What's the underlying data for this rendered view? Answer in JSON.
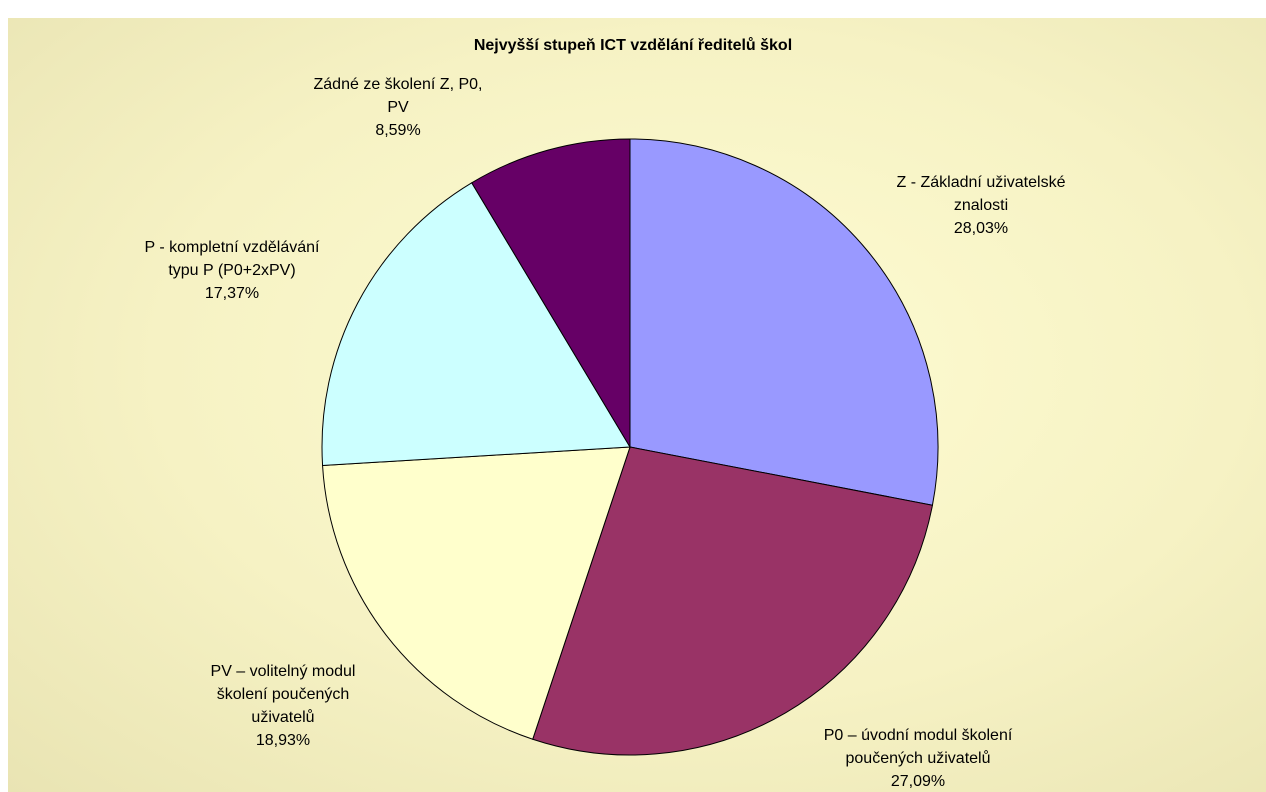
{
  "chart_data": {
    "type": "pie",
    "title": "Nejvyšší stupeň ICT vzdělání ředitelů škol",
    "categories": [
      "Z - Základní uživatelské znalosti",
      "P0 – úvodní modul školení poučených uživatelů",
      "PV – volitelný modul školení poučených uživatelů",
      "P - kompletní vzdělávání typu P (P0+2xPV)",
      "Zádné ze školení Z, P0, PV"
    ],
    "values": [
      28.03,
      27.09,
      18.93,
      17.37,
      8.59
    ],
    "value_labels": [
      "28,03%",
      "27,09%",
      "18,93%",
      "17,37%",
      "8,59%"
    ],
    "colors": [
      "#9999ff",
      "#993366",
      "#ffffcc",
      "#ccffff",
      "#660066"
    ]
  }
}
